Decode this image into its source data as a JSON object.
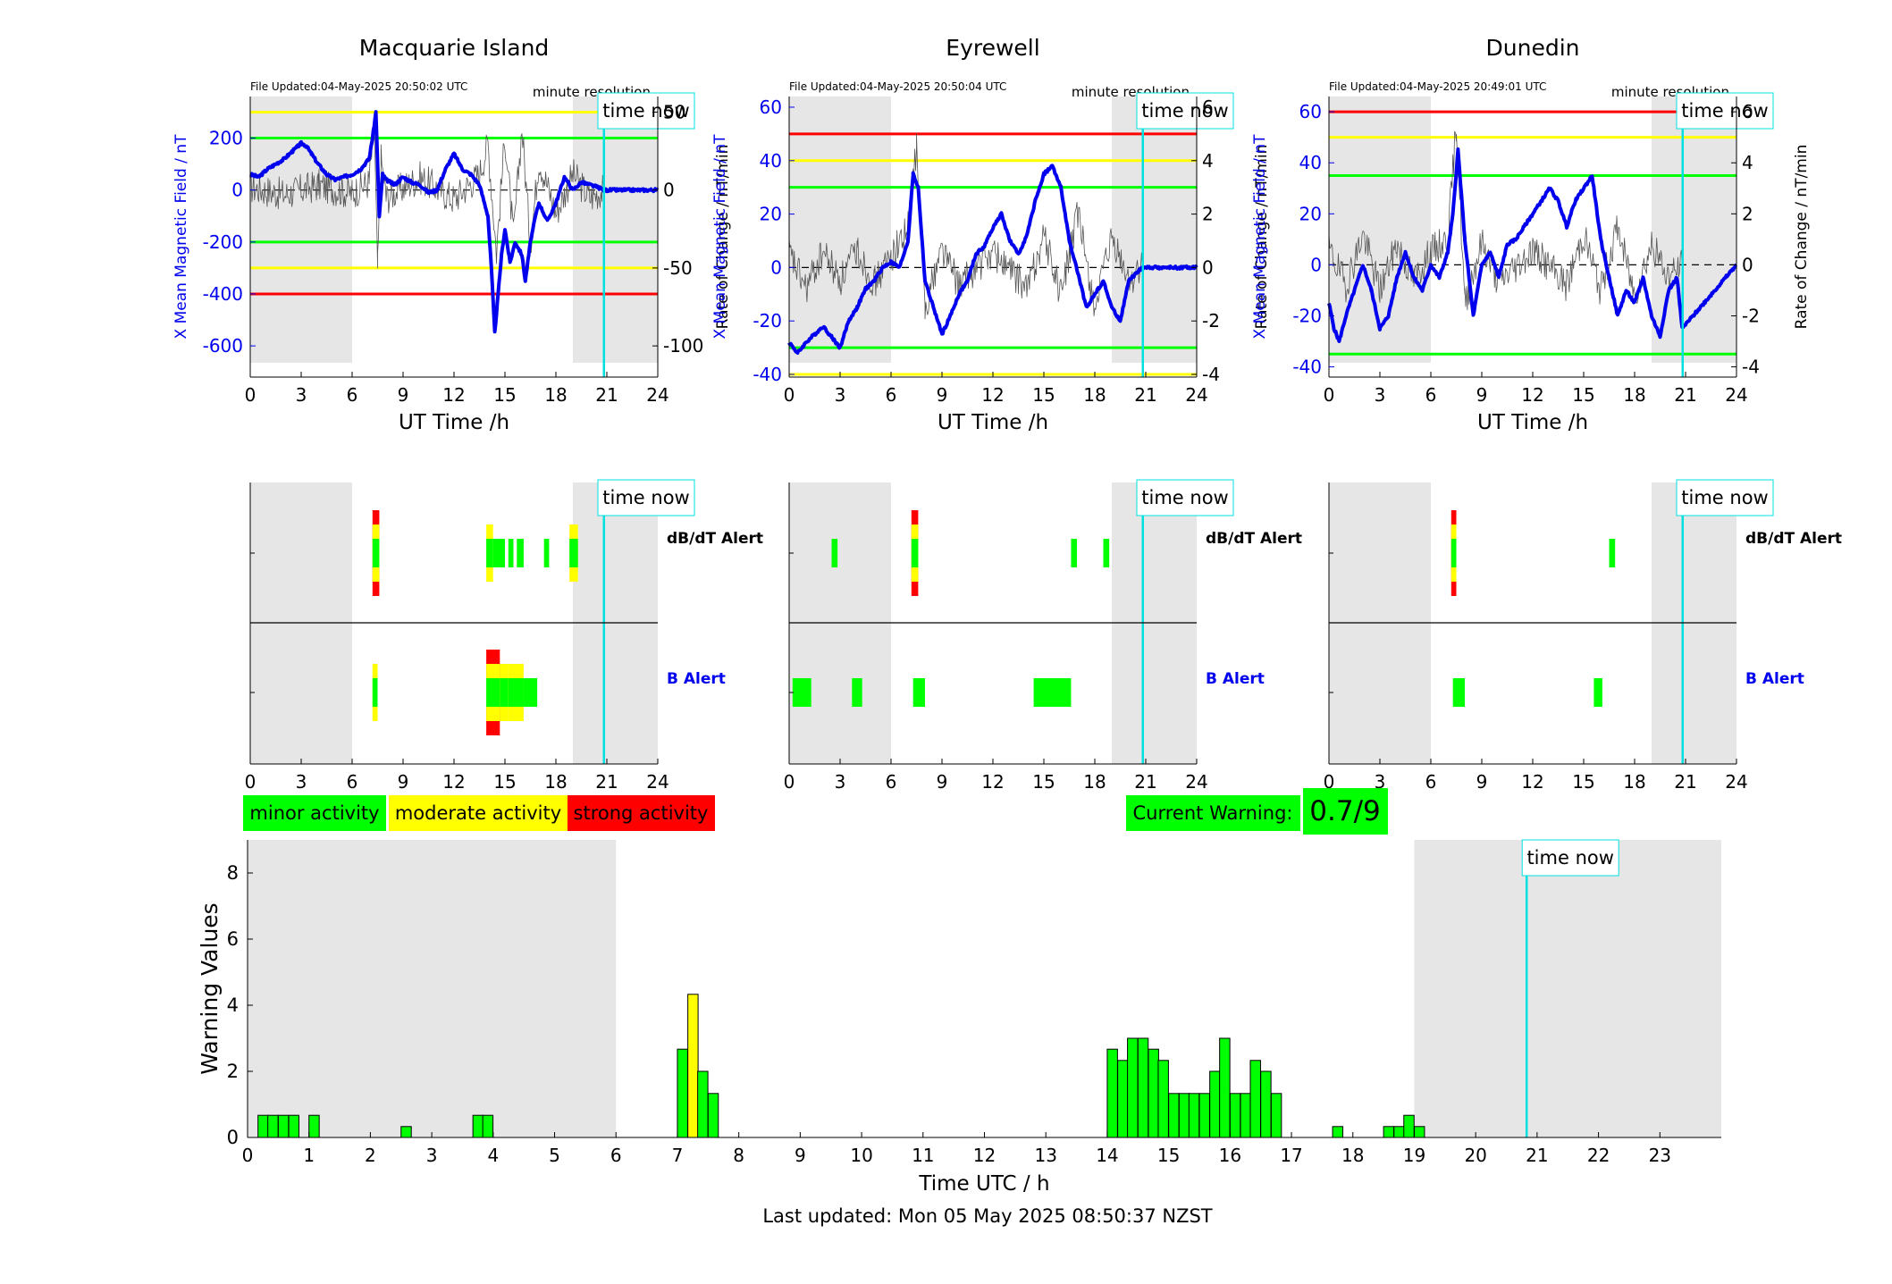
{
  "colors": {
    "field": "#0000ee",
    "rate": "#555555",
    "red": "#ff0000",
    "yellow": "#ffff00",
    "green": "#00ff00",
    "night": "#e6e6e6",
    "timenow": "#00e0e0"
  },
  "stations": [
    {
      "title": "Macquarie Island",
      "file_updated": "File Updated:04-May-2025 20:50:02 UTC",
      "resolution": "minute resolution",
      "time_now_label": "time now",
      "ylabel_left": "X Mean Magnetic Field / nT",
      "ylabel_right": "Rate of Change / nT/min",
      "xlabel": "UT Time /h",
      "dbdt_label": "dB/dT Alert",
      "b_label": "B Alert"
    },
    {
      "title": "Eyrewell",
      "file_updated": "File Updated:04-May-2025 20:50:04 UTC",
      "resolution": "minute resolution",
      "time_now_label": "time now",
      "ylabel_left": "X Mean Magnetic Field / nT",
      "ylabel_right": "Rate of Change / nT/min",
      "xlabel": "UT Time /h",
      "dbdt_label": "dB/dT Alert",
      "b_label": "B Alert"
    },
    {
      "title": "Dunedin",
      "file_updated": "File Updated:04-May-2025 20:49:01 UTC",
      "resolution": "minute resolution",
      "time_now_label": "time now",
      "ylabel_left": "X Mean Magnetic Field / nT",
      "ylabel_right": "Rate of Change / nT/min",
      "xlabel": "UT Time /h",
      "dbdt_label": "dB/dT Alert",
      "b_label": "B Alert"
    }
  ],
  "legend": {
    "minor": "minor activity",
    "moderate": "moderate activity",
    "strong": "strong activity"
  },
  "current_warning": {
    "label": "Current Warning:",
    "value": "0.7/9"
  },
  "footer": {
    "last_updated": "Last updated: Mon 05 May 2025 08:50:37 NZST"
  },
  "chart_data": [
    {
      "type": "line",
      "station": "Macquarie Island",
      "x_range": [
        0,
        24
      ],
      "x_ticks": [
        0,
        3,
        6,
        9,
        12,
        15,
        18,
        21,
        24
      ],
      "ylim_left": [
        -720,
        360
      ],
      "yticks_left": [
        200,
        0,
        -200,
        -400,
        -600
      ],
      "ylim_right": [
        -120,
        60
      ],
      "yticks_right": [
        50,
        0,
        -50,
        -100
      ],
      "night_shading_h": [
        [
          0,
          6
        ],
        [
          19,
          24
        ]
      ],
      "time_now_h": 20.83,
      "threshold_lines": [
        {
          "color": "yellow",
          "value": 300
        },
        {
          "color": "green",
          "value": 200
        },
        {
          "color": "green",
          "value": -200
        },
        {
          "color": "yellow",
          "value": -300
        },
        {
          "color": "red",
          "value": -400
        }
      ],
      "series": [
        {
          "axis": "left",
          "x": [
            0,
            0.5,
            1,
            1.5,
            2,
            2.5,
            3,
            3.3,
            3.6,
            4,
            4.5,
            5,
            5.5,
            6,
            6.5,
            7,
            7.2,
            7.4,
            7.6,
            7.8,
            8,
            8.5,
            9,
            9.5,
            10,
            10.5,
            11,
            11.5,
            12,
            12.5,
            13,
            13.5,
            14,
            14.2,
            14.4,
            14.6,
            14.8,
            15,
            15.3,
            15.6,
            16,
            16.2,
            16.5,
            16.8,
            17,
            17.5,
            18,
            18.5,
            19,
            19.5,
            20,
            20.5,
            20.8,
            24
          ],
          "y": [
            60,
            50,
            80,
            100,
            120,
            150,
            180,
            170,
            140,
            100,
            60,
            40,
            50,
            60,
            80,
            120,
            200,
            300,
            -100,
            60,
            40,
            20,
            50,
            30,
            20,
            -10,
            0,
            80,
            140,
            80,
            60,
            20,
            -100,
            -300,
            -550,
            -400,
            -250,
            -150,
            -280,
            -200,
            -250,
            -350,
            -200,
            -100,
            -50,
            -120,
            -50,
            50,
            0,
            30,
            20,
            10,
            0,
            0
          ]
        },
        {
          "axis": "right",
          "x": [
            0,
            2,
            4,
            6,
            7,
            7.3,
            7.5,
            7.7,
            8,
            10,
            12,
            13.5,
            14,
            14.5,
            15,
            15.5,
            16,
            16.5,
            17,
            18,
            19,
            20,
            20.8
          ],
          "y": [
            2,
            -3,
            3,
            -2,
            5,
            40,
            -50,
            20,
            -5,
            8,
            -6,
            10,
            30,
            -40,
            35,
            -30,
            40,
            -35,
            20,
            -15,
            10,
            -5,
            0
          ]
        }
      ]
    },
    {
      "type": "line",
      "station": "Eyrewell",
      "x_range": [
        0,
        24
      ],
      "x_ticks": [
        0,
        3,
        6,
        9,
        12,
        15,
        18,
        21,
        24
      ],
      "ylim_left": [
        -41,
        64
      ],
      "yticks_left": [
        60,
        40,
        20,
        0,
        -20,
        -40
      ],
      "ylim_right": [
        -4.1,
        6.4
      ],
      "yticks_right": [
        6,
        4,
        2,
        0,
        -2,
        -4
      ],
      "night_shading_h": [
        [
          0,
          6
        ],
        [
          19,
          24
        ]
      ],
      "time_now_h": 20.83,
      "threshold_lines": [
        {
          "color": "red",
          "value": 50
        },
        {
          "color": "yellow",
          "value": 40
        },
        {
          "color": "green",
          "value": 30
        },
        {
          "color": "green",
          "value": -30
        },
        {
          "color": "yellow",
          "value": -40
        }
      ],
      "series": [
        {
          "axis": "left",
          "x": [
            0,
            0.5,
            1,
            1.5,
            2,
            2.5,
            3,
            3.5,
            4,
            4.5,
            5,
            5.5,
            6,
            6.5,
            7,
            7.3,
            7.6,
            8,
            8.5,
            9,
            9.5,
            10,
            10.5,
            11,
            11.5,
            12,
            12.5,
            13,
            13.5,
            14,
            14.5,
            15,
            15.5,
            16,
            16.5,
            17,
            17.5,
            18,
            18.5,
            19,
            19.5,
            20,
            20.8,
            24
          ],
          "y": [
            -28,
            -32,
            -28,
            -25,
            -22,
            -26,
            -30,
            -20,
            -15,
            -8,
            -5,
            0,
            2,
            0,
            10,
            35,
            30,
            -5,
            -15,
            -25,
            -18,
            -10,
            -5,
            5,
            8,
            15,
            20,
            10,
            5,
            12,
            25,
            35,
            38,
            30,
            10,
            -2,
            -15,
            -10,
            -5,
            -15,
            -20,
            -5,
            0,
            0
          ]
        },
        {
          "axis": "right",
          "x": [
            0,
            1,
            2,
            3,
            4,
            5,
            6,
            7,
            7.5,
            8,
            9,
            10,
            12,
            14,
            15,
            16,
            17,
            18,
            19,
            20,
            20.8
          ],
          "y": [
            0.5,
            -0.8,
            0.6,
            -0.5,
            0.7,
            -0.6,
            0.4,
            1.5,
            4.5,
            -1.5,
            0.8,
            -0.7,
            0.6,
            -0.8,
            1.2,
            -1.0,
            2.0,
            -1.5,
            1.0,
            -0.5,
            0
          ]
        }
      ]
    },
    {
      "type": "line",
      "station": "Dunedin",
      "x_range": [
        0,
        24
      ],
      "x_ticks": [
        0,
        3,
        6,
        9,
        12,
        15,
        18,
        21,
        24
      ],
      "ylim_left": [
        -44,
        66
      ],
      "yticks_left": [
        60,
        40,
        20,
        0,
        -20,
        -40
      ],
      "ylim_right": [
        -4.4,
        6.6
      ],
      "yticks_right": [
        6,
        4,
        2,
        0,
        -2,
        -4
      ],
      "night_shading_h": [
        [
          0,
          6
        ],
        [
          19,
          24
        ]
      ],
      "time_now_h": 20.83,
      "threshold_lines": [
        {
          "color": "red",
          "value": 60
        },
        {
          "color": "yellow",
          "value": 50
        },
        {
          "color": "green",
          "value": 35
        },
        {
          "color": "green",
          "value": -35
        }
      ],
      "series": [
        {
          "axis": "left",
          "x": [
            0,
            0.3,
            0.6,
            1,
            1.5,
            2,
            2.5,
            3,
            3.5,
            4,
            4.5,
            5,
            5.5,
            6,
            6.5,
            7,
            7.3,
            7.6,
            8,
            8.5,
            9,
            9.5,
            10,
            10.5,
            11,
            11.5,
            12,
            12.5,
            13,
            13.5,
            14,
            14.5,
            15,
            15.5,
            16,
            16.5,
            17,
            17.5,
            18,
            18.5,
            19,
            19.5,
            20,
            20.5,
            20.8,
            24
          ],
          "y": [
            -15,
            -25,
            -30,
            -20,
            -10,
            0,
            -10,
            -25,
            -20,
            -5,
            5,
            -5,
            -10,
            0,
            -5,
            5,
            20,
            45,
            10,
            -20,
            0,
            5,
            -5,
            8,
            10,
            15,
            20,
            25,
            30,
            25,
            15,
            25,
            30,
            35,
            10,
            -5,
            -20,
            -10,
            -15,
            -5,
            -20,
            -28,
            -10,
            -5,
            -25,
            0
          ]
        },
        {
          "axis": "right",
          "x": [
            0,
            1,
            2,
            3,
            4,
            5,
            6,
            7,
            7.5,
            8,
            9,
            10,
            12,
            14,
            15,
            16,
            17,
            18,
            19,
            20,
            20.8
          ],
          "y": [
            0.6,
            -0.8,
            1.2,
            -1.0,
            0.8,
            -0.6,
            0.5,
            1.0,
            5.5,
            -1.5,
            0.9,
            -0.7,
            0.6,
            -0.8,
            1.2,
            -1.0,
            1.5,
            -1.2,
            0.8,
            -0.5,
            0
          ]
        }
      ]
    },
    {
      "type": "alert_timeline",
      "station": "Macquarie Island",
      "x_range": [
        0,
        24
      ],
      "x_ticks": [
        0,
        3,
        6,
        9,
        12,
        15,
        18,
        21,
        24
      ],
      "night_shading_h": [
        [
          0,
          6
        ],
        [
          19,
          24
        ]
      ],
      "time_now_h": 20.83,
      "dbdt_alerts": [
        {
          "start": 7.2,
          "end": 7.6,
          "level": 3
        },
        {
          "start": 13.9,
          "end": 14.3,
          "level": 2
        },
        {
          "start": 14.3,
          "end": 15.0,
          "level": 1
        },
        {
          "start": 15.2,
          "end": 15.5,
          "level": 1
        },
        {
          "start": 15.7,
          "end": 16.1,
          "level": 1
        },
        {
          "start": 17.3,
          "end": 17.6,
          "level": 1
        },
        {
          "start": 18.8,
          "end": 19.3,
          "level": 2
        }
      ],
      "b_alerts": [
        {
          "start": 7.2,
          "end": 7.5,
          "level": 2
        },
        {
          "start": 13.9,
          "end": 14.7,
          "level": 3
        },
        {
          "start": 14.7,
          "end": 15.2,
          "level": 2
        },
        {
          "start": 15.2,
          "end": 16.1,
          "level": 2
        },
        {
          "start": 16.1,
          "end": 16.9,
          "level": 1
        }
      ]
    },
    {
      "type": "alert_timeline",
      "station": "Eyrewell",
      "x_range": [
        0,
        24
      ],
      "x_ticks": [
        0,
        3,
        6,
        9,
        12,
        15,
        18,
        21,
        24
      ],
      "night_shading_h": [
        [
          0,
          6
        ],
        [
          19,
          24
        ]
      ],
      "time_now_h": 20.83,
      "dbdt_alerts": [
        {
          "start": 2.5,
          "end": 2.85,
          "level": 1
        },
        {
          "start": 7.2,
          "end": 7.6,
          "level": 3
        },
        {
          "start": 16.6,
          "end": 16.95,
          "level": 1
        },
        {
          "start": 18.5,
          "end": 18.85,
          "level": 1
        }
      ],
      "b_alerts": [
        {
          "start": 0.2,
          "end": 1.3,
          "level": 1
        },
        {
          "start": 3.7,
          "end": 4.3,
          "level": 1
        },
        {
          "start": 7.3,
          "end": 8.0,
          "level": 1
        },
        {
          "start": 14.4,
          "end": 16.6,
          "level": 1
        }
      ]
    },
    {
      "type": "alert_timeline",
      "station": "Dunedin",
      "x_range": [
        0,
        24
      ],
      "x_ticks": [
        0,
        3,
        6,
        9,
        12,
        15,
        18,
        21,
        24
      ],
      "night_shading_h": [
        [
          0,
          6
        ],
        [
          19,
          24
        ]
      ],
      "time_now_h": 20.83,
      "dbdt_alerts": [
        {
          "start": 7.2,
          "end": 7.5,
          "level": 3
        },
        {
          "start": 16.5,
          "end": 16.85,
          "level": 1
        }
      ],
      "b_alerts": [
        {
          "start": 7.3,
          "end": 8.0,
          "level": 1
        },
        {
          "start": 15.6,
          "end": 16.1,
          "level": 1
        }
      ]
    },
    {
      "type": "bar",
      "title": "",
      "xlabel": "Time UTC / h",
      "ylabel": "Warning Values",
      "x_range": [
        0,
        24
      ],
      "x_ticks": [
        0,
        1,
        2,
        3,
        4,
        5,
        6,
        7,
        8,
        9,
        10,
        11,
        12,
        13,
        14,
        15,
        16,
        17,
        18,
        19,
        20,
        21,
        22,
        23
      ],
      "ylim": [
        0,
        9
      ],
      "y_ticks": [
        0,
        2,
        4,
        6,
        8
      ],
      "night_shading_h": [
        [
          0,
          6
        ],
        [
          19,
          24
        ]
      ],
      "time_now_h": 20.83,
      "bin_width_h": 0.1667,
      "bin_starts_h": [
        0.17,
        0.33,
        0.5,
        0.67,
        1.0,
        2.5,
        3.67,
        3.83,
        7.0,
        7.17,
        7.33,
        7.5,
        7.67,
        14.0,
        14.17,
        14.33,
        14.5,
        14.67,
        14.83,
        15.0,
        15.17,
        15.33,
        15.5,
        15.67,
        15.83,
        16.0,
        16.17,
        16.33,
        16.5,
        16.67,
        17.67,
        18.5,
        18.67,
        18.83,
        19.0
      ],
      "values": [
        0.67,
        0.67,
        0.67,
        0.67,
        0.67,
        0.33,
        0.67,
        0.67,
        2.67,
        4.33,
        2.0,
        1.33,
        0.0,
        2.67,
        2.33,
        3.0,
        3.0,
        2.67,
        2.33,
        1.33,
        1.33,
        1.33,
        1.33,
        2.0,
        3.0,
        1.33,
        1.33,
        2.33,
        2.0,
        1.33,
        0.33,
        0.33,
        0.33,
        0.67,
        0.33
      ],
      "levels": [
        1,
        1,
        1,
        1,
        1,
        1,
        1,
        1,
        1,
        2,
        1,
        1,
        1,
        1,
        1,
        1,
        1,
        1,
        1,
        1,
        1,
        1,
        1,
        1,
        1,
        1,
        1,
        1,
        1,
        1,
        1,
        1,
        1,
        1,
        1
      ]
    }
  ]
}
